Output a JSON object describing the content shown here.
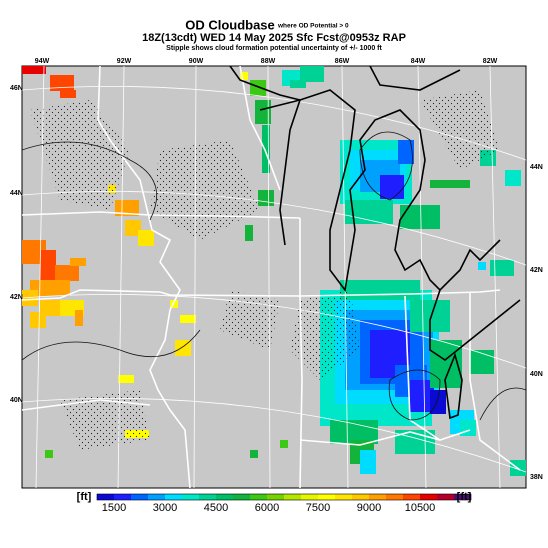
{
  "header": {
    "title": "OD Cloudbase",
    "title_note": "where OD Potential > 0",
    "valid": "18Z(13cdt) WED 14 May 2025 Sfc Fcst@0953z RAP",
    "note": "Stipple shows cloud formation potential uncertainty of +/- 1000 ft"
  },
  "map": {
    "top_labels": [
      "94W",
      "92W",
      "90W",
      "88W",
      "86W",
      "84W",
      "82W"
    ],
    "left_labels": [
      "46N",
      "44N",
      "42N",
      "40N"
    ],
    "right_labels": [
      "44N",
      "42N",
      "40N",
      "38N"
    ]
  },
  "colorbar": {
    "unit": "[ft]",
    "colors": [
      "#0a0ad2",
      "#1e1eff",
      "#0064ff",
      "#00a0ff",
      "#00dcff",
      "#00e6c8",
      "#00d296",
      "#00be64",
      "#14b43c",
      "#3cc814",
      "#78d200",
      "#b4e600",
      "#e6f500",
      "#ffff00",
      "#ffe600",
      "#ffc800",
      "#ffa000",
      "#ff7800",
      "#ff4600",
      "#e60000",
      "#b40028",
      "#500a78"
    ],
    "ticks": [
      "1500",
      "3000",
      "4500",
      "6000",
      "7500",
      "9000",
      "10500"
    ]
  }
}
